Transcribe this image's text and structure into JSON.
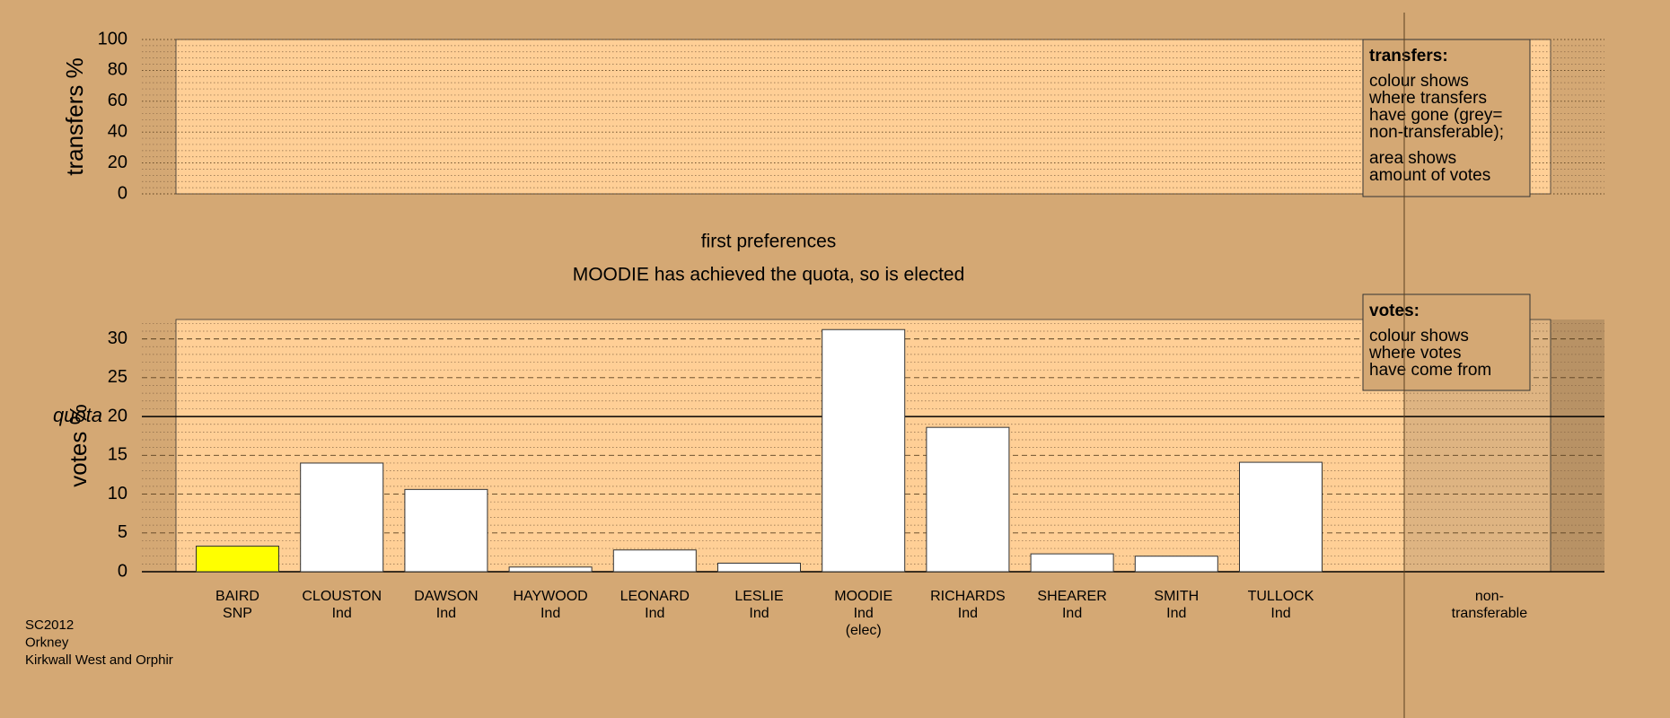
{
  "chart_data": [
    {
      "type": "bar",
      "ylabel": "transfers %",
      "ylim": [
        0,
        100
      ],
      "yticks": [
        0,
        20,
        40,
        60,
        80,
        100
      ],
      "legend": {
        "title": "transfers:",
        "paragraphs": [
          [
            "colour shows",
            "where transfers",
            "have gone (grey=",
            "non-transferable);"
          ],
          [
            "area shows",
            "amount of votes"
          ]
        ]
      }
    },
    {
      "type": "bar",
      "title": "first preferences",
      "subtitle": "MOODIE has achieved the quota, so is elected",
      "ylabel": "votes %",
      "ylim": [
        0,
        32.5
      ],
      "yticks": [
        0,
        5,
        10,
        15,
        20,
        25,
        30
      ],
      "quota": {
        "value": 20,
        "label": "quota"
      },
      "categories": [
        [
          "BAIRD",
          "SNP"
        ],
        [
          "CLOUSTON",
          "Ind"
        ],
        [
          "DAWSON",
          "Ind"
        ],
        [
          "HAYWOOD",
          "Ind"
        ],
        [
          "LEONARD",
          "Ind"
        ],
        [
          "LESLIE",
          "Ind"
        ],
        [
          "MOODIE",
          "Ind",
          "(elec)"
        ],
        [
          "RICHARDS",
          "Ind"
        ],
        [
          "SHEARER",
          "Ind"
        ],
        [
          "SMITH",
          "Ind"
        ],
        [
          "TULLOCK",
          "Ind"
        ],
        [
          "non-",
          "transferable"
        ]
      ],
      "values": [
        3.3,
        14.0,
        10.6,
        0.6,
        2.8,
        1.1,
        31.2,
        18.6,
        2.3,
        2.0,
        14.1,
        null
      ],
      "colors": [
        "#ffff00",
        "#ffffff",
        "#ffffff",
        "#ffffff",
        "#ffffff",
        "#ffffff",
        "#ffffff",
        "#ffffff",
        "#ffffff",
        "#ffffff",
        "#ffffff",
        null
      ],
      "legend": {
        "title": "votes:",
        "paragraphs": [
          [
            "colour shows",
            "where votes",
            "have come from"
          ]
        ]
      },
      "footer": [
        "SC2012",
        "Orkney",
        "Kirkwall West and Orphir"
      ]
    }
  ]
}
